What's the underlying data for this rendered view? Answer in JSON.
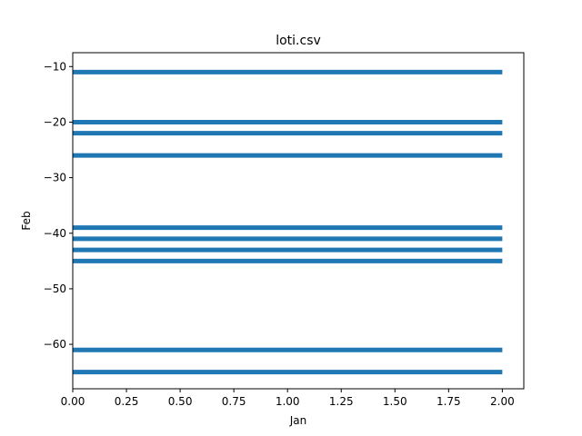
{
  "chart_data": {
    "type": "line",
    "title": "loti.csv",
    "xlabel": "Jan",
    "ylabel": "Feb",
    "xlim": [
      0,
      2.1
    ],
    "ylim": [
      -68,
      -7.5
    ],
    "x_ticks": [
      0.0,
      0.25,
      0.5,
      0.75,
      1.0,
      1.25,
      1.5,
      1.75,
      2.0
    ],
    "x_tick_labels": [
      "0.00",
      "0.25",
      "0.50",
      "0.75",
      "1.00",
      "1.25",
      "1.50",
      "1.75",
      "2.00"
    ],
    "y_ticks": [
      -10,
      -20,
      -30,
      -40,
      -50,
      -60
    ],
    "y_tick_labels": [
      "−10",
      "−20",
      "−30",
      "−40",
      "−50",
      "−60"
    ],
    "grid": false,
    "color": "#1f77b4",
    "series": [
      {
        "x": [
          0,
          2
        ],
        "y": [
          -11,
          -11
        ]
      },
      {
        "x": [
          0,
          2
        ],
        "y": [
          -20,
          -20
        ]
      },
      {
        "x": [
          0,
          2
        ],
        "y": [
          -22,
          -22
        ]
      },
      {
        "x": [
          0,
          2
        ],
        "y": [
          -26,
          -26
        ]
      },
      {
        "x": [
          0,
          2
        ],
        "y": [
          -39,
          -39
        ]
      },
      {
        "x": [
          0,
          2
        ],
        "y": [
          -41,
          -41
        ]
      },
      {
        "x": [
          0,
          2
        ],
        "y": [
          -43,
          -43
        ]
      },
      {
        "x": [
          0,
          2
        ],
        "y": [
          -45,
          -45
        ]
      },
      {
        "x": [
          0,
          2
        ],
        "y": [
          -61,
          -61
        ]
      },
      {
        "x": [
          0,
          2
        ],
        "y": [
          -65,
          -65
        ]
      }
    ]
  }
}
